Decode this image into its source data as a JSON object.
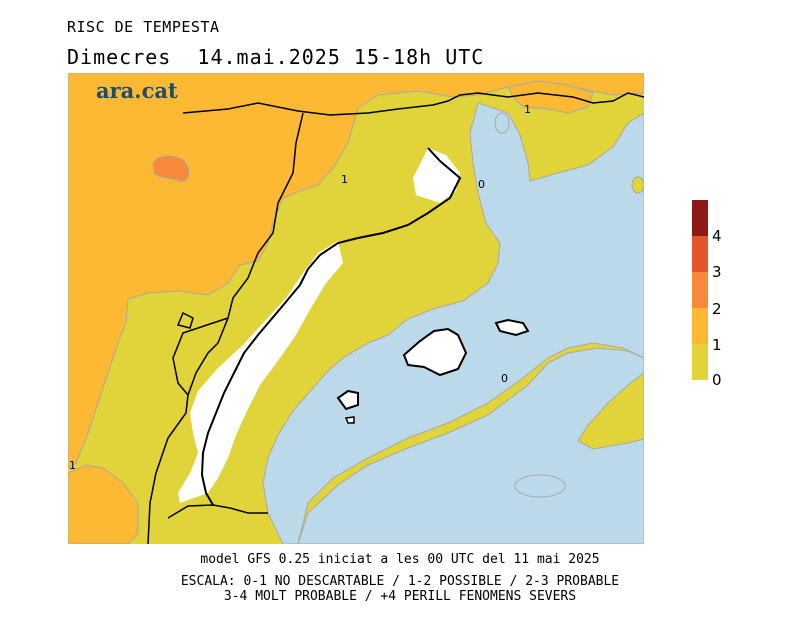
{
  "header": {
    "title": "RISC DE TEMPESTA",
    "subtitle": "Dimecres  14.mai.2025 15-18h UTC"
  },
  "logo": {
    "text": "ara.cat"
  },
  "map": {
    "contour_labels": [
      "1",
      "0",
      "1",
      "0",
      "1"
    ],
    "colors": {
      "level_0_1": "#e0d43a",
      "level_1_2": "#fdb933",
      "level_2_3": "#f7893b",
      "level_3_4": "#e4552b",
      "level_4_plus": "#8c1a16",
      "sea": "#bcd9ea",
      "land_no_data": "#ffffff"
    }
  },
  "legend": {
    "labels": [
      "0",
      "1",
      "2",
      "3",
      "4"
    ]
  },
  "footer": {
    "model_line": "model GFS 0.25 iniciat a les 00 UTC del 11 mai 2025",
    "scale_line1": "ESCALA: 0-1 NO DESCARTABLE / 1-2 POSSIBLE / 2-3 PROBABLE",
    "scale_line2": "3-4 MOLT PROBABLE / +4 PERILL FENOMENS SEVERS"
  }
}
